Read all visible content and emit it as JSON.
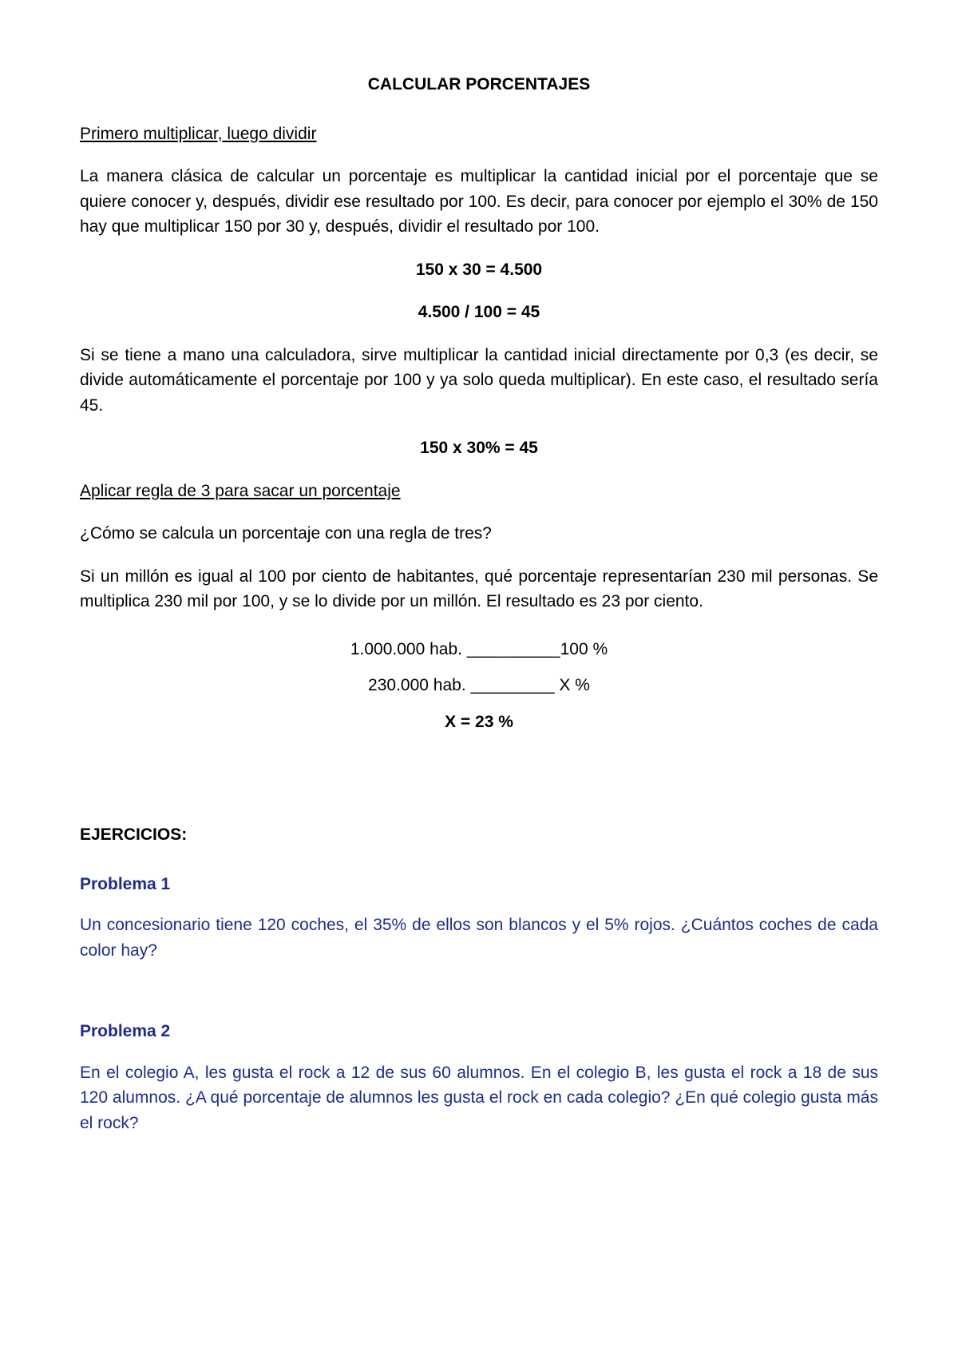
{
  "title": "CALCULAR PORCENTAJES",
  "section1": {
    "heading": "Primero multiplicar, luego dividir",
    "para1": "La manera clásica de calcular un porcentaje es multiplicar la cantidad inicial por el porcentaje que se quiere conocer y, después, dividir ese resultado por 100. Es decir, para conocer por ejemplo el 30% de 150 hay que multiplicar 150 por 30 y, después, dividir el resultado por 100.",
    "formula1": "150 x 30 = 4.500",
    "formula2": "4.500 / 100 = 45",
    "para2": "Si se tiene a mano una calculadora, sirve multiplicar la cantidad inicial directamente por 0,3 (es decir, se divide automáticamente el porcentaje por 100 y ya solo queda multiplicar). En este caso, el resultado sería 45.",
    "formula3": "150 x 30% = 45"
  },
  "section2": {
    "heading": "Aplicar regla de 3 para sacar un porcentaje",
    "para1": "¿Cómo se calcula un porcentaje con una regla de tres?",
    "para2": "Si un millón es igual al 100 por ciento de habitantes, qué porcentaje representarían 230 mil personas. Se multiplica 230 mil por 100, y se lo divide por un millón. El resultado es 23 por ciento.",
    "calc1": "1.000.000 hab. __________100 %",
    "calc2": "230.000  hab. _________ X %",
    "result": "X = 23 %"
  },
  "exercises": {
    "heading": "EJERCICIOS:",
    "problems": [
      {
        "title": "Problema 1",
        "text": "Un concesionario tiene 120 coches, el 35% de ellos son blancos y el 5% rojos. ¿Cuántos coches de cada color hay?"
      },
      {
        "title": "Problema 2",
        "text": "En el colegio A, les gusta el rock a 12 de sus 60 alumnos. En el colegio B, les gusta el rock a 18 de sus 120 alumnos. ¿A qué porcentaje de alumnos les gusta el rock en cada colegio? ¿En qué colegio gusta más el rock?"
      }
    ]
  },
  "colors": {
    "text": "#000000",
    "problem": "#1d2c8f",
    "background": "#ffffff"
  }
}
